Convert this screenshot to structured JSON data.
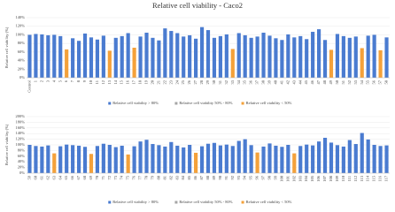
{
  "title": "Relative cell viability - Caco2",
  "chart_data": [
    {
      "type": "bar",
      "y_label": "Relative cell viability (%)",
      "grid": true,
      "ylim": [
        0,
        140
      ],
      "yticks": [
        {
          "value": 0,
          "label": "0%"
        },
        {
          "value": 20,
          "label": "20%"
        },
        {
          "value": 40,
          "label": "40%"
        },
        {
          "value": 60,
          "label": "60%"
        },
        {
          "value": 80,
          "label": "80%"
        },
        {
          "value": 100,
          "label": "100%"
        },
        {
          "value": 120,
          "label": "120%"
        },
        {
          "value": 140,
          "label": "140%"
        }
      ],
      "categories": [
        "Control",
        "1",
        "2",
        "3",
        "4",
        "5",
        "6",
        "7",
        "8",
        "9",
        "10",
        "11",
        "12",
        "13",
        "14",
        "15",
        "16",
        "17",
        "18",
        "19",
        "20",
        "21",
        "22",
        "23",
        "24",
        "25",
        "26",
        "27",
        "28",
        "29",
        "30",
        "31",
        "32",
        "33",
        "34",
        "35",
        "36",
        "37",
        "38",
        "39",
        "40",
        "41",
        "42",
        "43",
        "44",
        "45",
        "46",
        "47",
        "48",
        "49",
        "50",
        "51",
        "52",
        "53",
        "54",
        "55",
        "56",
        "57",
        "58"
      ],
      "values": [
        100,
        102,
        101,
        99,
        100,
        97,
        66,
        92,
        86,
        103,
        94,
        89,
        98,
        63,
        93,
        97,
        104,
        70,
        96,
        105,
        93,
        87,
        115,
        109,
        104,
        96,
        99,
        91,
        118,
        111,
        93,
        97,
        101,
        67,
        104,
        99,
        93,
        96,
        105,
        98,
        92,
        88,
        101,
        94,
        97,
        90,
        107,
        113,
        88,
        65,
        102,
        97,
        93,
        96,
        69,
        98,
        100,
        64,
        94
      ],
      "colors": [
        "#4a7bd0",
        "#4a7bd0",
        "#4a7bd0",
        "#4a7bd0",
        "#4a7bd0",
        "#4a7bd0",
        "#f4a13a",
        "#4a7bd0",
        "#4a7bd0",
        "#4a7bd0",
        "#4a7bd0",
        "#4a7bd0",
        "#4a7bd0",
        "#f4a13a",
        "#4a7bd0",
        "#4a7bd0",
        "#4a7bd0",
        "#f4a13a",
        "#4a7bd0",
        "#4a7bd0",
        "#4a7bd0",
        "#4a7bd0",
        "#4a7bd0",
        "#4a7bd0",
        "#4a7bd0",
        "#4a7bd0",
        "#4a7bd0",
        "#4a7bd0",
        "#4a7bd0",
        "#4a7bd0",
        "#4a7bd0",
        "#4a7bd0",
        "#4a7bd0",
        "#f4a13a",
        "#4a7bd0",
        "#4a7bd0",
        "#4a7bd0",
        "#4a7bd0",
        "#4a7bd0",
        "#4a7bd0",
        "#4a7bd0",
        "#4a7bd0",
        "#4a7bd0",
        "#4a7bd0",
        "#4a7bd0",
        "#4a7bd0",
        "#4a7bd0",
        "#4a7bd0",
        "#4a7bd0",
        "#f4a13a",
        "#4a7bd0",
        "#4a7bd0",
        "#4a7bd0",
        "#4a7bd0",
        "#f4a13a",
        "#4a7bd0",
        "#4a7bd0",
        "#f4a13a",
        "#4a7bd0"
      ],
      "legend": [
        {
          "name": "Relative cell viability > 80%",
          "color": "#4a7bd0"
        },
        {
          "name": "Relative cell viability 50% - 80%",
          "color": "#a5a5a5"
        },
        {
          "name": "Relative cell viability < 50%",
          "color": "#f4a13a"
        }
      ]
    },
    {
      "type": "bar",
      "y_label": "Relative cell viability (%)",
      "grid": true,
      "ylim": [
        0,
        200
      ],
      "yticks": [
        {
          "value": 0,
          "label": "0%"
        },
        {
          "value": 20,
          "label": "20%"
        },
        {
          "value": 40,
          "label": "40%"
        },
        {
          "value": 60,
          "label": "60%"
        },
        {
          "value": 80,
          "label": "80%"
        },
        {
          "value": 100,
          "label": "100%"
        },
        {
          "value": 120,
          "label": "120%"
        },
        {
          "value": 140,
          "label": "140%"
        },
        {
          "value": 160,
          "label": "160%"
        },
        {
          "value": 180,
          "label": "180%"
        },
        {
          "value": 200,
          "label": "200%"
        }
      ],
      "categories": [
        "59",
        "60",
        "61",
        "62",
        "63",
        "64",
        "65",
        "66",
        "67",
        "68",
        "69",
        "70",
        "71",
        "72",
        "73",
        "74",
        "75",
        "76",
        "77",
        "78",
        "79",
        "80",
        "81",
        "82",
        "83",
        "84",
        "85",
        "86",
        "87",
        "88",
        "89",
        "90",
        "91",
        "92",
        "93",
        "94",
        "95",
        "96",
        "97",
        "98",
        "99",
        "100",
        "101",
        "102",
        "103",
        "104",
        "105",
        "106",
        "107",
        "108",
        "109",
        "110",
        "111",
        "112",
        "113",
        "114",
        "115",
        "116",
        "117"
      ],
      "values": [
        100,
        96,
        94,
        98,
        70,
        95,
        101,
        99,
        97,
        93,
        68,
        96,
        104,
        100,
        92,
        97,
        66,
        95,
        112,
        118,
        103,
        99,
        94,
        110,
        97,
        91,
        100,
        72,
        95,
        104,
        107,
        98,
        101,
        96,
        114,
        120,
        99,
        73,
        94,
        105,
        97,
        93,
        100,
        70,
        96,
        101,
        98,
        112,
        125,
        108,
        99,
        94,
        117,
        103,
        142,
        119,
        100,
        96,
        98
      ],
      "colors": [
        "#4a7bd0",
        "#4a7bd0",
        "#4a7bd0",
        "#4a7bd0",
        "#f4a13a",
        "#4a7bd0",
        "#4a7bd0",
        "#4a7bd0",
        "#4a7bd0",
        "#4a7bd0",
        "#f4a13a",
        "#4a7bd0",
        "#4a7bd0",
        "#4a7bd0",
        "#4a7bd0",
        "#4a7bd0",
        "#f4a13a",
        "#4a7bd0",
        "#4a7bd0",
        "#4a7bd0",
        "#4a7bd0",
        "#4a7bd0",
        "#4a7bd0",
        "#4a7bd0",
        "#4a7bd0",
        "#4a7bd0",
        "#4a7bd0",
        "#f4a13a",
        "#4a7bd0",
        "#4a7bd0",
        "#4a7bd0",
        "#4a7bd0",
        "#4a7bd0",
        "#4a7bd0",
        "#4a7bd0",
        "#4a7bd0",
        "#4a7bd0",
        "#f4a13a",
        "#4a7bd0",
        "#4a7bd0",
        "#4a7bd0",
        "#4a7bd0",
        "#4a7bd0",
        "#f4a13a",
        "#4a7bd0",
        "#4a7bd0",
        "#4a7bd0",
        "#4a7bd0",
        "#4a7bd0",
        "#4a7bd0",
        "#4a7bd0",
        "#4a7bd0",
        "#4a7bd0",
        "#4a7bd0",
        "#4a7bd0",
        "#4a7bd0",
        "#4a7bd0",
        "#4a7bd0",
        "#4a7bd0"
      ],
      "legend": [
        {
          "name": "Relative cell viability > 80%",
          "color": "#4a7bd0"
        },
        {
          "name": "Relative cell viability 50% - 80%",
          "color": "#a5a5a5"
        },
        {
          "name": "Relative cell viability < 50%",
          "color": "#f4a13a"
        }
      ]
    }
  ]
}
